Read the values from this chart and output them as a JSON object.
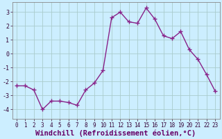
{
  "x": [
    0,
    1,
    2,
    3,
    4,
    5,
    6,
    7,
    8,
    9,
    10,
    11,
    12,
    13,
    14,
    15,
    16,
    17,
    18,
    19,
    20,
    21,
    22,
    23
  ],
  "y": [
    -2.3,
    -2.3,
    -2.6,
    -4.0,
    -3.4,
    -3.4,
    -3.5,
    -3.7,
    -2.6,
    -2.1,
    -1.2,
    2.6,
    3.0,
    2.3,
    2.2,
    3.3,
    2.5,
    1.3,
    1.1,
    1.6,
    0.3,
    -0.4,
    -1.5,
    -2.7
  ],
  "line_color": "#882288",
  "marker": "+",
  "marker_size": 4,
  "bg_color": "#cceeff",
  "grid_color": "#aacccc",
  "xlabel": "Windchill (Refroidissement éolien,°C)",
  "xlim": [
    -0.5,
    23.5
  ],
  "ylim": [
    -4.7,
    3.7
  ],
  "yticks": [
    -4,
    -3,
    -2,
    -1,
    0,
    1,
    2,
    3
  ],
  "xticks": [
    0,
    1,
    2,
    3,
    4,
    5,
    6,
    7,
    8,
    9,
    10,
    11,
    12,
    13,
    14,
    15,
    16,
    17,
    18,
    19,
    20,
    21,
    22,
    23
  ],
  "tick_label_size": 5.5,
  "xlabel_size": 7.5,
  "xlabel_color": "#660066",
  "spine_color": "#888888",
  "line_width": 1.0,
  "marker_color": "#882288",
  "marker_edge_width": 1.0
}
